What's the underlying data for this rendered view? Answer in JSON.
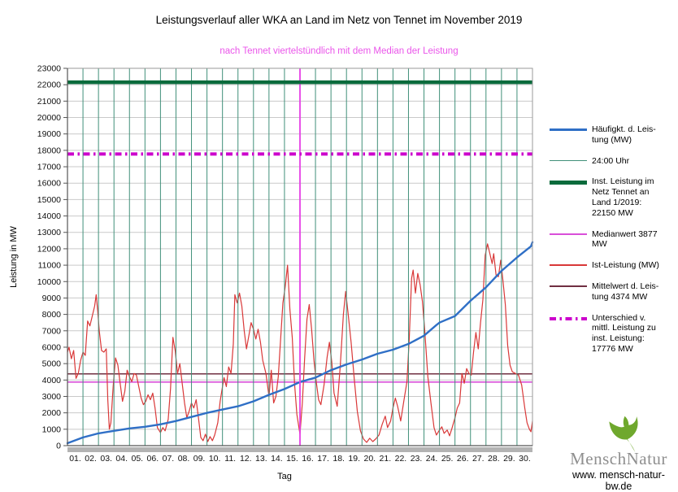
{
  "legend": {
    "items": [
      {
        "label": "Häufigkt. d. Leis-\ntung (MW)",
        "color": "#2f6fc6",
        "weight": 3,
        "dashed": false
      },
      {
        "label": "24:00 Uhr",
        "color": "#41907a",
        "weight": 1,
        "dashed": false
      },
      {
        "label": "Inst. Leistung im\nNetz Tennet an\nLand 1/2019:\n22150  MW",
        "color": "#0a6b3c",
        "weight": 5,
        "dashed": false
      },
      {
        "label": "Medianwert 3877\nMW",
        "color": "#d94fd9",
        "weight": 2,
        "dashed": false
      },
      {
        "label": "Ist-Leistung (MW)",
        "color": "#d93838",
        "weight": 2,
        "dashed": false
      },
      {
        "label": "Mittelwert d. Leis-\ntung 4374 MW",
        "color": "#702f42",
        "weight": 2,
        "dashed": false
      },
      {
        "label": "Unterschied v.\nmittl. Leistung zu\ninst. Leistung:\n17776 MW",
        "color": "#cc00cc",
        "weight": 4,
        "dashed": true
      }
    ]
  },
  "logo": {
    "name_part1": "Mensch",
    "name_part2": "Natur",
    "url": "www. mensch-natur-bw.de",
    "leaf_color": "#6fa82d"
  },
  "chart_data": {
    "type": "line",
    "title": "Leistungsverlauf aller WKA an Land im Netz von Tennet im November 2019",
    "subtitle": "nach Tennet viertelstündlich mit dem Median der Leistung",
    "xlabel": "Tag",
    "ylabel": "Leistung in MW",
    "xlim": [
      0,
      30
    ],
    "ylim": [
      0,
      23000
    ],
    "grid": true,
    "legend_position": "right",
    "y_ticks": [
      0,
      1000,
      2000,
      3000,
      4000,
      5000,
      6000,
      7000,
      8000,
      9000,
      10000,
      11000,
      12000,
      13000,
      14000,
      15000,
      16000,
      17000,
      18000,
      19000,
      20000,
      21000,
      22000,
      23000
    ],
    "x_tick_labels": [
      "01.",
      "02.",
      "03.",
      "04.",
      "05.",
      "06.",
      "07.",
      "08.",
      "09.",
      "10.",
      "11.",
      "12.",
      "13.",
      "14.",
      "15.",
      "16.",
      "17.",
      "18.",
      "19.",
      "20.",
      "21.",
      "22.",
      "23.",
      "24.",
      "25.",
      "26.",
      "27.",
      "28.",
      "29.",
      "30."
    ],
    "reference_lines": [
      {
        "name": "inst-leistung",
        "value": 22150,
        "color": "#0a6b3c",
        "width": 4.5,
        "dash": ""
      },
      {
        "name": "unterschied-mittl-zu-inst",
        "value": 17776,
        "color": "#cc00cc",
        "width": 4,
        "dash": "8 4.5 2.5 4.5"
      },
      {
        "name": "mittelwert",
        "value": 4374,
        "color": "#702f42",
        "width": 1.6,
        "dash": ""
      },
      {
        "name": "medianwert",
        "value": 3877,
        "color": "#d94fd9",
        "width": 1.6,
        "dash": ""
      },
      {
        "name": "median-vline",
        "day": 15,
        "color": "#e63fe6",
        "width": 1.8,
        "vertical": true
      }
    ],
    "series": [
      {
        "name": "Ist-Leistung (MW)",
        "color": "#d93838",
        "width": 1.2,
        "points": [
          [
            0,
            5700
          ],
          [
            0.1,
            6000
          ],
          [
            0.25,
            5300
          ],
          [
            0.4,
            5800
          ],
          [
            0.55,
            4100
          ],
          [
            0.7,
            4400
          ],
          [
            0.85,
            5200
          ],
          [
            1,
            5700
          ],
          [
            1.15,
            5500
          ],
          [
            1.3,
            7600
          ],
          [
            1.45,
            7300
          ],
          [
            1.6,
            7900
          ],
          [
            1.75,
            8500
          ],
          [
            1.85,
            9200
          ],
          [
            1.95,
            8200
          ],
          [
            2.05,
            7000
          ],
          [
            2.2,
            5800
          ],
          [
            2.35,
            5700
          ],
          [
            2.5,
            5900
          ],
          [
            2.6,
            2800
          ],
          [
            2.7,
            1000
          ],
          [
            2.8,
            1400
          ],
          [
            2.95,
            3600
          ],
          [
            3.1,
            5350
          ],
          [
            3.25,
            4900
          ],
          [
            3.4,
            3800
          ],
          [
            3.55,
            2700
          ],
          [
            3.7,
            3300
          ],
          [
            3.85,
            4600
          ],
          [
            4,
            4200
          ],
          [
            4.15,
            3900
          ],
          [
            4.3,
            4400
          ],
          [
            4.45,
            4300
          ],
          [
            4.6,
            3600
          ],
          [
            4.75,
            2900
          ],
          [
            4.9,
            2500
          ],
          [
            5.05,
            2700
          ],
          [
            5.2,
            3100
          ],
          [
            5.35,
            2800
          ],
          [
            5.5,
            3200
          ],
          [
            5.65,
            2300
          ],
          [
            5.8,
            1100
          ],
          [
            6,
            800
          ],
          [
            6.15,
            1100
          ],
          [
            6.3,
            900
          ],
          [
            6.5,
            1600
          ],
          [
            6.65,
            3500
          ],
          [
            6.8,
            6600
          ],
          [
            6.95,
            5800
          ],
          [
            7.1,
            4400
          ],
          [
            7.25,
            5000
          ],
          [
            7.4,
            3800
          ],
          [
            7.55,
            2600
          ],
          [
            7.7,
            1700
          ],
          [
            7.85,
            2100
          ],
          [
            8,
            2600
          ],
          [
            8.15,
            2300
          ],
          [
            8.3,
            2800
          ],
          [
            8.45,
            1700
          ],
          [
            8.6,
            500
          ],
          [
            8.75,
            300
          ],
          [
            8.9,
            700
          ],
          [
            9.05,
            250
          ],
          [
            9.2,
            550
          ],
          [
            9.35,
            300
          ],
          [
            9.5,
            650
          ],
          [
            9.7,
            1400
          ],
          [
            9.85,
            2700
          ],
          [
            10,
            3600
          ],
          [
            10.1,
            4150
          ],
          [
            10.25,
            3600
          ],
          [
            10.4,
            4800
          ],
          [
            10.55,
            4400
          ],
          [
            10.7,
            6200
          ],
          [
            10.8,
            9200
          ],
          [
            10.95,
            8700
          ],
          [
            11.1,
            9300
          ],
          [
            11.25,
            8500
          ],
          [
            11.4,
            7000
          ],
          [
            11.55,
            5900
          ],
          [
            11.7,
            6700
          ],
          [
            11.85,
            7500
          ],
          [
            12,
            7100
          ],
          [
            12.15,
            6500
          ],
          [
            12.3,
            7100
          ],
          [
            12.45,
            6300
          ],
          [
            12.6,
            5200
          ],
          [
            12.8,
            4400
          ],
          [
            13,
            3000
          ],
          [
            13.15,
            4600
          ],
          [
            13.3,
            2600
          ],
          [
            13.45,
            3000
          ],
          [
            13.6,
            4200
          ],
          [
            13.75,
            6500
          ],
          [
            13.9,
            8700
          ],
          [
            14.05,
            9700
          ],
          [
            14.2,
            11000
          ],
          [
            14.35,
            8300
          ],
          [
            14.5,
            6600
          ],
          [
            14.65,
            3800
          ],
          [
            14.8,
            1900
          ],
          [
            15,
            700
          ],
          [
            15.15,
            2600
          ],
          [
            15.3,
            5300
          ],
          [
            15.45,
            7700
          ],
          [
            15.6,
            8600
          ],
          [
            15.75,
            7100
          ],
          [
            15.9,
            5200
          ],
          [
            16.05,
            3900
          ],
          [
            16.2,
            2800
          ],
          [
            16.35,
            2500
          ],
          [
            16.55,
            3700
          ],
          [
            16.75,
            5400
          ],
          [
            16.9,
            6300
          ],
          [
            17.05,
            5100
          ],
          [
            17.2,
            3200
          ],
          [
            17.4,
            2400
          ],
          [
            17.6,
            4900
          ],
          [
            17.8,
            8000
          ],
          [
            17.95,
            9400
          ],
          [
            18.1,
            8100
          ],
          [
            18.3,
            6300
          ],
          [
            18.5,
            4100
          ],
          [
            18.7,
            2100
          ],
          [
            18.9,
            900
          ],
          [
            19.1,
            400
          ],
          [
            19.3,
            200
          ],
          [
            19.5,
            450
          ],
          [
            19.7,
            250
          ],
          [
            19.9,
            420
          ],
          [
            20.1,
            650
          ],
          [
            20.3,
            1300
          ],
          [
            20.5,
            1800
          ],
          [
            20.65,
            1100
          ],
          [
            20.85,
            1500
          ],
          [
            21,
            2300
          ],
          [
            21.15,
            2900
          ],
          [
            21.3,
            2400
          ],
          [
            21.5,
            1500
          ],
          [
            21.7,
            2700
          ],
          [
            21.9,
            3900
          ],
          [
            22.05,
            6500
          ],
          [
            22.2,
            10200
          ],
          [
            22.3,
            10700
          ],
          [
            22.45,
            9300
          ],
          [
            22.6,
            10500
          ],
          [
            22.75,
            9800
          ],
          [
            22.9,
            8800
          ],
          [
            23.05,
            7000
          ],
          [
            23.25,
            4200
          ],
          [
            23.45,
            2600
          ],
          [
            23.65,
            1100
          ],
          [
            23.8,
            650
          ],
          [
            24,
            950
          ],
          [
            24.15,
            1150
          ],
          [
            24.3,
            750
          ],
          [
            24.5,
            950
          ],
          [
            24.65,
            600
          ],
          [
            24.8,
            1050
          ],
          [
            25,
            1700
          ],
          [
            25.15,
            2300
          ],
          [
            25.3,
            2600
          ],
          [
            25.45,
            4400
          ],
          [
            25.6,
            3800
          ],
          [
            25.75,
            4700
          ],
          [
            25.9,
            4400
          ],
          [
            26.05,
            4300
          ],
          [
            26.2,
            5700
          ],
          [
            26.35,
            6900
          ],
          [
            26.5,
            5900
          ],
          [
            26.65,
            7500
          ],
          [
            26.8,
            8900
          ],
          [
            26.95,
            11600
          ],
          [
            27.1,
            12300
          ],
          [
            27.25,
            11700
          ],
          [
            27.4,
            11100
          ],
          [
            27.5,
            11700
          ],
          [
            27.65,
            10400
          ],
          [
            27.8,
            10300
          ],
          [
            27.95,
            11300
          ],
          [
            28.1,
            10000
          ],
          [
            28.25,
            8600
          ],
          [
            28.4,
            6100
          ],
          [
            28.55,
            4900
          ],
          [
            28.7,
            4500
          ],
          [
            28.9,
            4400
          ],
          [
            29.1,
            4300
          ],
          [
            29.3,
            3700
          ],
          [
            29.5,
            2300
          ],
          [
            29.65,
            1400
          ],
          [
            29.8,
            1000
          ],
          [
            29.9,
            850
          ],
          [
            30,
            1500
          ]
        ]
      },
      {
        "name": "Häufigkt. d. Leistung (MW)",
        "color": "#2f6fc6",
        "width": 2.4,
        "points": [
          [
            0,
            150
          ],
          [
            1,
            500
          ],
          [
            2,
            750
          ],
          [
            3,
            900
          ],
          [
            4,
            1050
          ],
          [
            5,
            1150
          ],
          [
            6,
            1300
          ],
          [
            7,
            1500
          ],
          [
            8,
            1750
          ],
          [
            9,
            2000
          ],
          [
            10,
            2200
          ],
          [
            11,
            2400
          ],
          [
            12,
            2700
          ],
          [
            13,
            3100
          ],
          [
            14,
            3450
          ],
          [
            15,
            3877
          ],
          [
            16,
            4150
          ],
          [
            17,
            4600
          ],
          [
            18,
            4950
          ],
          [
            19,
            5250
          ],
          [
            20,
            5600
          ],
          [
            21,
            5850
          ],
          [
            22,
            6200
          ],
          [
            23,
            6700
          ],
          [
            23.8,
            7350
          ],
          [
            24,
            7500
          ],
          [
            25,
            7900
          ],
          [
            26,
            8830
          ],
          [
            27,
            9650
          ],
          [
            28,
            10650
          ],
          [
            29,
            11470
          ],
          [
            29.7,
            12000
          ],
          [
            29.9,
            12150
          ],
          [
            30,
            12400
          ]
        ]
      },
      {
        "name": "24:00 Uhr",
        "type": "daily-vertical-lines",
        "color": "#41907a",
        "width": 1
      }
    ]
  }
}
